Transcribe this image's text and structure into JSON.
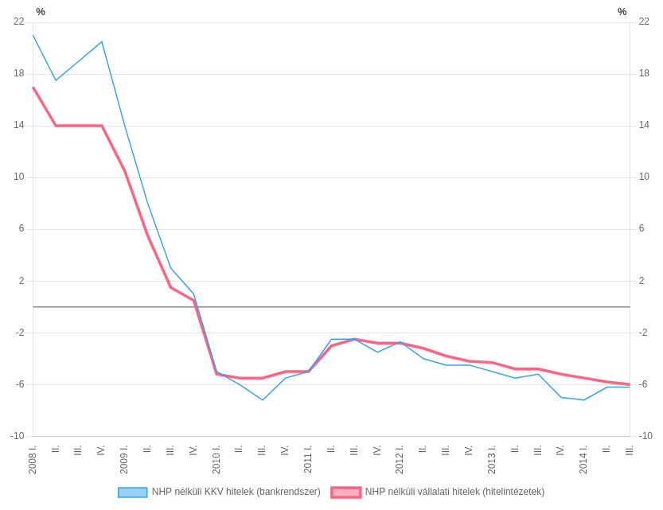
{
  "chart_data": {
    "type": "line",
    "categories": [
      "2008 I.",
      "II.",
      "III.",
      "IV.",
      "2009 I.",
      "II.",
      "III.",
      "IV.",
      "2010 I.",
      "II.",
      "III.",
      "IV.",
      "2011 I.",
      "II.",
      "III.",
      "IV.",
      "2012 I.",
      "II.",
      "III.",
      "IV.",
      "2013 I.",
      "II.",
      "III.",
      "IV.",
      "2014 I.",
      "II.",
      "III."
    ],
    "series": [
      {
        "name": "NHP nélküli KKV hitelek (bankrendszer)",
        "values": [
          21.0,
          17.5,
          19.0,
          20.5,
          14.0,
          8.0,
          3.0,
          1.0,
          -5.0,
          -6.0,
          -7.2,
          -5.5,
          -5.0,
          -2.5,
          -2.5,
          -3.5,
          -2.7,
          -4.0,
          -4.5,
          -4.5,
          -5.0,
          -5.5,
          -5.2,
          -7.0,
          -7.2,
          -6.2,
          -6.2
        ]
      },
      {
        "name": "NHP nélküli vállalati hitelek (hitelintézetek)",
        "values": [
          17.0,
          14.0,
          14.0,
          14.0,
          10.5,
          5.5,
          1.5,
          0.5,
          -5.2,
          -5.5,
          -5.5,
          -5.0,
          -5.0,
          -3.0,
          -2.5,
          -2.8,
          -2.8,
          -3.2,
          -3.8,
          -4.2,
          -4.3,
          -4.8,
          -4.8,
          -5.2,
          -5.5,
          -5.8,
          -6.0
        ]
      }
    ],
    "ylim": [
      -10,
      22
    ],
    "yticks": [
      -10,
      -6,
      -2,
      2,
      6,
      10,
      14,
      18,
      22
    ],
    "y2lim": [
      -10,
      22
    ],
    "y2ticks": [
      -10,
      -6,
      -2,
      2,
      6,
      10,
      14,
      18,
      22
    ],
    "ylabel": "%",
    "y2label": "%",
    "hline": 0,
    "grid": true,
    "legend": "bottom"
  }
}
